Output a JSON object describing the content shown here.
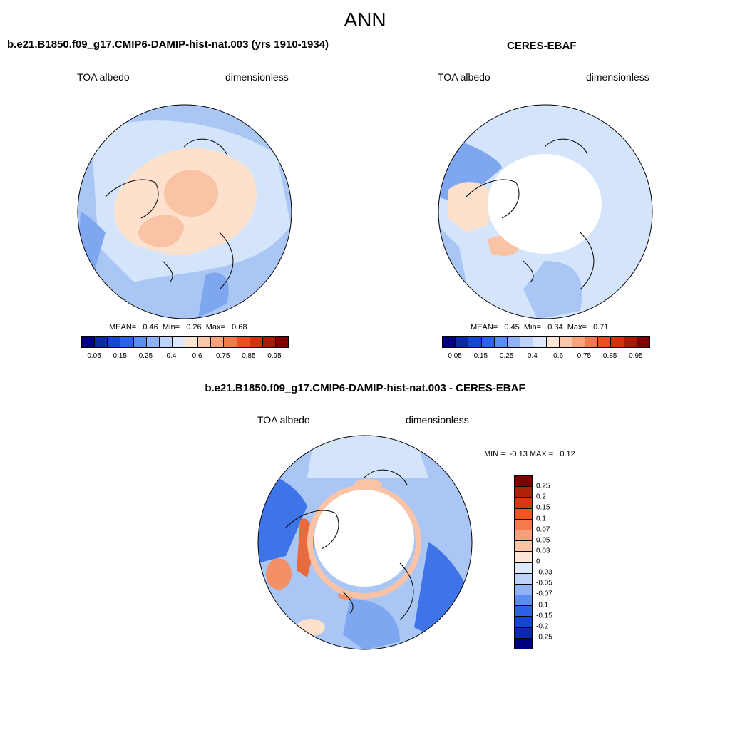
{
  "main_title": "ANN",
  "panels": [
    {
      "title": "b.e21.B1850.f09_g17.CMIP6-DAMIP-hist-nat.003 (yrs 1910-1934)",
      "var_label": "TOA albedo",
      "units": "dimensionless",
      "stats": "MEAN=   0.46  Min=   0.26  Max=   0.68"
    },
    {
      "title": "CERES-EBAF",
      "var_label": "TOA albedo",
      "units": "dimensionless",
      "stats": "MEAN=   0.45  Min=   0.34  Max=   0.71"
    },
    {
      "title": "b.e21.B1850.f09_g17.CMIP6-DAMIP-hist-nat.003 - CERES-EBAF",
      "var_label": "TOA albedo",
      "units": "dimensionless",
      "stats": "MIN =  -0.13 MAX =   0.12"
    }
  ],
  "colorbar_abs": {
    "colors": [
      "#000080",
      "#0a2aa8",
      "#1446d4",
      "#2a62ee",
      "#5c8ef2",
      "#8fb3f5",
      "#bdd3f8",
      "#dde9fb",
      "#fde6d5",
      "#fbc7a9",
      "#f9a37c",
      "#f57a4a",
      "#ee4e1f",
      "#d6300c",
      "#aa1805",
      "#7f0000"
    ],
    "labels": [
      "0.05",
      "0.15",
      "0.25",
      "0.4",
      "0.6",
      "0.75",
      "0.85",
      "0.95"
    ]
  },
  "colorbar_diff": {
    "colors": [
      "#800000",
      "#b0200a",
      "#d8380c",
      "#f4561f",
      "#f77a4c",
      "#f9a07a",
      "#fbc4a4",
      "#fde6d5",
      "#dde9fb",
      "#bcd2f8",
      "#8fb3f5",
      "#5c8ef2",
      "#2a62ee",
      "#1446d4",
      "#0a2aa8",
      "#000080"
    ],
    "labels": [
      "0.25",
      "0.2",
      "0.15",
      "0.1",
      "0.07",
      "0.05",
      "0.03",
      "0",
      "-0.03",
      "-0.05",
      "-0.07",
      "-0.1",
      "-0.15",
      "-0.2",
      "-0.25"
    ]
  },
  "map_colors": {
    "ocean_blue": "#a9c6f4",
    "light_blue": "#d4e5fb",
    "mid_blue": "#7ea7ef",
    "deep_blue": "#3f73e8",
    "peach": "#fde1cc",
    "salmon": "#fac3a6",
    "orange": "#f49066",
    "red_orange": "#e86a3d",
    "missing": "#ffffff"
  }
}
